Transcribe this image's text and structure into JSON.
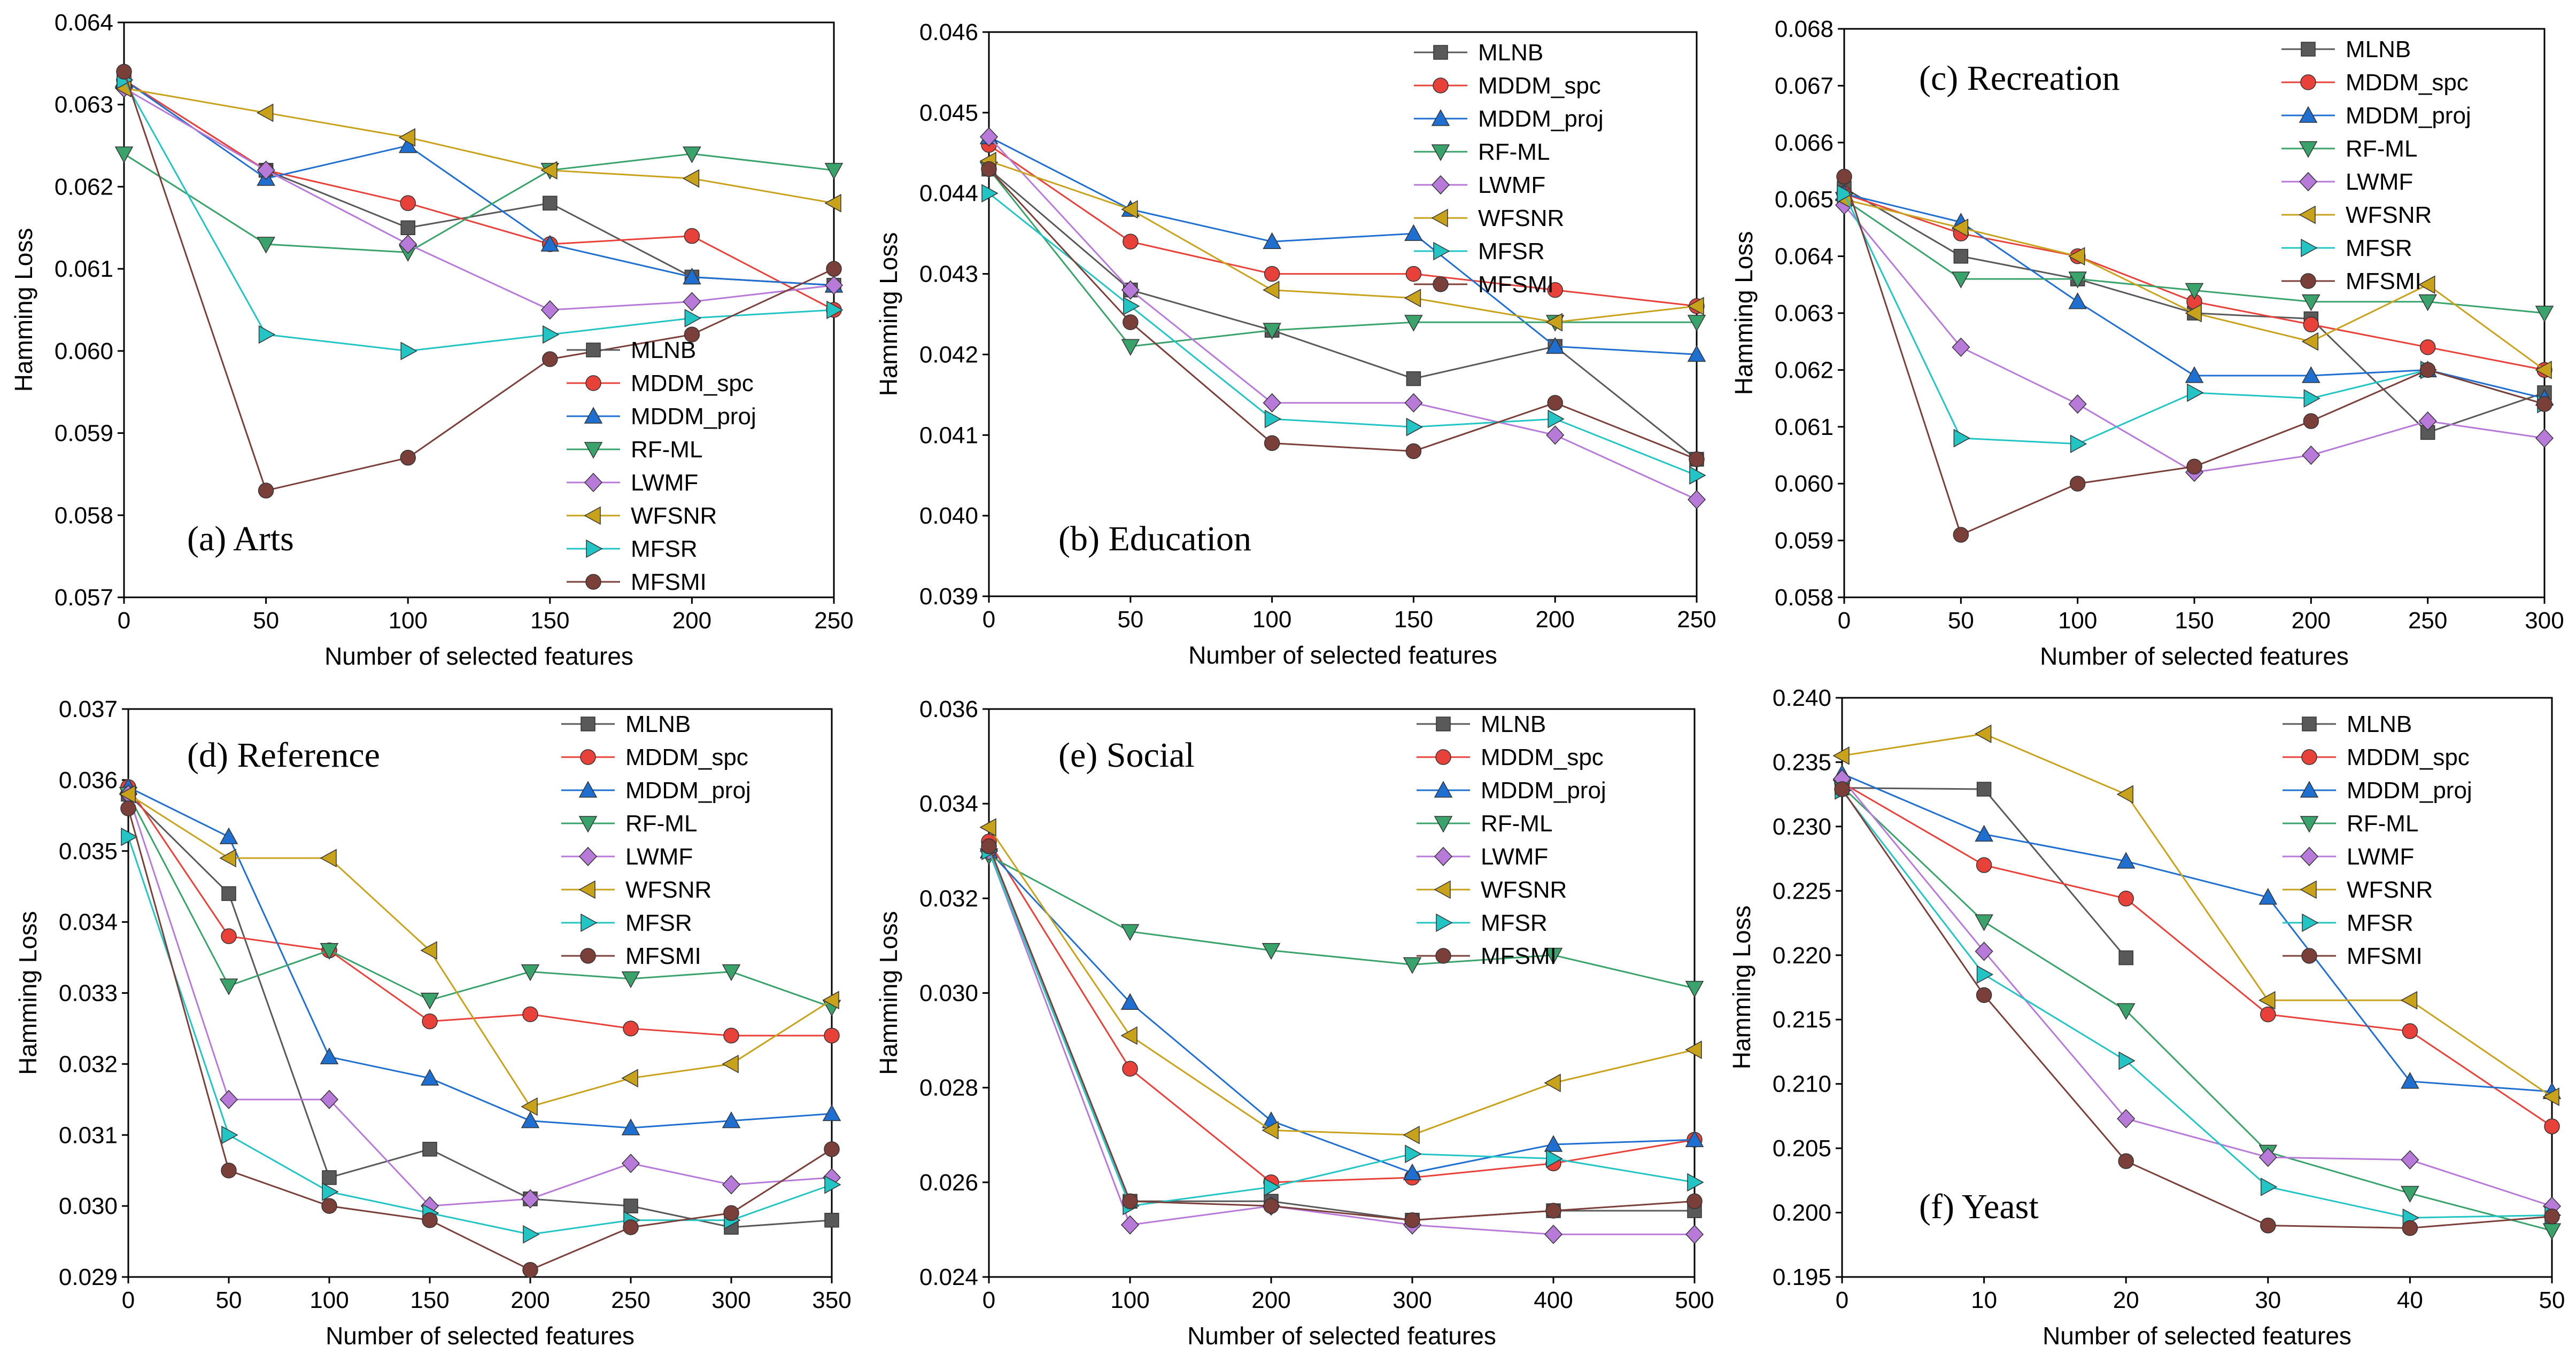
{
  "figure": {
    "series_styles": [
      {
        "name": "MLNB",
        "color": "#595959",
        "marker": "square"
      },
      {
        "name": "MDDM_spc",
        "color": "#e8413a",
        "marker": "circle"
      },
      {
        "name": "MDDM_proj",
        "color": "#1f6fd1",
        "marker": "triangle-up"
      },
      {
        "name": "RF-ML",
        "color": "#3aa36b",
        "marker": "triangle-down"
      },
      {
        "name": "LWMF",
        "color": "#b77ad8",
        "marker": "diamond"
      },
      {
        "name": "WFSNR",
        "color": "#c9a21c",
        "marker": "triangle-left"
      },
      {
        "name": "MFSR",
        "color": "#22c4c4",
        "marker": "triangle-right"
      },
      {
        "name": "MFSMI",
        "color": "#7b3f3a",
        "marker": "circle"
      }
    ]
  },
  "chart_data": [
    {
      "type": "line",
      "title": "(a) Arts",
      "xlabel": "Number of selected features",
      "ylabel": "Hamming Loss",
      "x": [
        0,
        50,
        100,
        150,
        200,
        250
      ],
      "xticks": [
        "0",
        "50",
        "100",
        "150",
        "200",
        "250"
      ],
      "xlim": [
        0,
        250
      ],
      "ylim": [
        0.057,
        0.064
      ],
      "yticks": [
        "0.057",
        "0.058",
        "0.059",
        "0.060",
        "0.061",
        "0.062",
        "0.063",
        "0.064"
      ],
      "series": [
        {
          "name": "MLNB",
          "values": [
            0.0633,
            0.0622,
            0.0615,
            0.0618,
            0.0609,
            0.0608
          ]
        },
        {
          "name": "MDDM_spc",
          "values": [
            0.0633,
            0.0622,
            0.0618,
            0.0613,
            0.0614,
            0.0605
          ]
        },
        {
          "name": "MDDM_proj",
          "values": [
            0.0633,
            0.0621,
            0.0625,
            0.0613,
            0.0609,
            0.0608
          ]
        },
        {
          "name": "RF-ML",
          "values": [
            0.0624,
            0.0613,
            0.0612,
            0.0622,
            0.0624,
            0.0622
          ]
        },
        {
          "name": "LWMF",
          "values": [
            0.0632,
            0.0622,
            0.0613,
            0.0605,
            0.0606,
            0.0608
          ]
        },
        {
          "name": "WFSNR",
          "values": [
            0.0632,
            0.0629,
            0.0626,
            0.0622,
            0.0621,
            0.0618
          ]
        },
        {
          "name": "MFSR",
          "values": [
            0.0633,
            0.0602,
            0.06,
            0.0602,
            0.0604,
            0.0605
          ]
        },
        {
          "name": "MFSMI",
          "values": [
            0.0634,
            0.0583,
            0.0587,
            0.0599,
            0.0602,
            0.061
          ]
        }
      ]
    },
    {
      "type": "line",
      "title": "(b) Education",
      "xlabel": "Number of selected features",
      "ylabel": "Hamming Loss",
      "x": [
        0,
        50,
        100,
        150,
        200,
        250
      ],
      "xticks": [
        "0",
        "50",
        "100",
        "150",
        "200",
        "250"
      ],
      "xlim": [
        0,
        250
      ],
      "ylim": [
        0.039,
        0.046
      ],
      "yticks": [
        "0.039",
        "0.040",
        "0.041",
        "0.042",
        "0.043",
        "0.044",
        "0.045",
        "0.046"
      ],
      "series": [
        {
          "name": "MLNB",
          "values": [
            0.0443,
            0.0428,
            0.0423,
            0.0417,
            0.0421,
            0.0407
          ]
        },
        {
          "name": "MDDM_spc",
          "values": [
            0.0446,
            0.0434,
            0.043,
            0.043,
            0.0428,
            0.0426
          ]
        },
        {
          "name": "MDDM_proj",
          "values": [
            0.0447,
            0.0438,
            0.0434,
            0.0435,
            0.0421,
            0.042
          ]
        },
        {
          "name": "RF-ML",
          "values": [
            0.0443,
            0.0421,
            0.0423,
            0.0424,
            0.0424,
            0.0424
          ]
        },
        {
          "name": "LWMF",
          "values": [
            0.0447,
            0.0428,
            0.0414,
            0.0414,
            0.041,
            0.0402
          ]
        },
        {
          "name": "WFSNR",
          "values": [
            0.0444,
            0.0438,
            0.0428,
            0.0427,
            0.0424,
            0.0426
          ]
        },
        {
          "name": "MFSR",
          "values": [
            0.044,
            0.0426,
            0.0412,
            0.0411,
            0.0412,
            0.0405
          ]
        },
        {
          "name": "MFSMI",
          "values": [
            0.0443,
            0.0424,
            0.0409,
            0.0408,
            0.0414,
            0.0407
          ]
        }
      ]
    },
    {
      "type": "line",
      "title": "(c) Recreation",
      "xlabel": "Number of selected features",
      "ylabel": "Hamming Loss",
      "x": [
        0,
        50,
        100,
        150,
        200,
        250,
        300
      ],
      "xticks": [
        "0",
        "50",
        "100",
        "150",
        "200",
        "250",
        "300"
      ],
      "xlim": [
        0,
        300
      ],
      "ylim": [
        0.058,
        0.068
      ],
      "yticks": [
        "0.058",
        "0.059",
        "0.060",
        "0.061",
        "0.062",
        "0.063",
        "0.064",
        "0.065",
        "0.066",
        "0.067",
        "0.068"
      ],
      "series": [
        {
          "name": "MLNB",
          "values": [
            0.0652,
            0.064,
            0.0636,
            0.063,
            0.0629,
            0.0609,
            0.0616
          ]
        },
        {
          "name": "MDDM_spc",
          "values": [
            0.0651,
            0.0644,
            0.064,
            0.0632,
            0.0628,
            0.0624,
            0.062
          ]
        },
        {
          "name": "MDDM_proj",
          "values": [
            0.0651,
            0.0646,
            0.0632,
            0.0619,
            0.0619,
            0.062,
            0.0615
          ]
        },
        {
          "name": "RF-ML",
          "values": [
            0.065,
            0.0636,
            0.0636,
            0.0634,
            0.0632,
            0.0632,
            0.063
          ]
        },
        {
          "name": "LWMF",
          "values": [
            0.0649,
            0.0624,
            0.0614,
            0.0602,
            0.0605,
            0.0611,
            0.0608
          ]
        },
        {
          "name": "WFSNR",
          "values": [
            0.065,
            0.0645,
            0.064,
            0.063,
            0.0625,
            0.0635,
            0.062
          ]
        },
        {
          "name": "MFSR",
          "values": [
            0.0651,
            0.0608,
            0.0607,
            0.0616,
            0.0615,
            0.062,
            0.0614
          ]
        },
        {
          "name": "MFSMI",
          "values": [
            0.0654,
            0.0591,
            0.06,
            0.0603,
            0.0611,
            0.062,
            0.0614
          ]
        }
      ]
    },
    {
      "type": "line",
      "title": "(d) Reference",
      "xlabel": "Number of selected features",
      "ylabel": "Hamming Loss",
      "x": [
        0,
        50,
        100,
        150,
        200,
        250,
        300,
        350
      ],
      "xticks": [
        "0",
        "50",
        "100",
        "150",
        "200",
        "250",
        "300",
        "350"
      ],
      "xlim": [
        0,
        350
      ],
      "ylim": [
        0.029,
        0.037
      ],
      "yticks": [
        "0.029",
        "0.030",
        "0.031",
        "0.032",
        "0.033",
        "0.034",
        "0.035",
        "0.036",
        "0.037"
      ],
      "series": [
        {
          "name": "MLNB",
          "values": [
            0.0358,
            0.0344,
            0.0304,
            0.0308,
            0.0301,
            0.03,
            0.0297,
            0.0298
          ]
        },
        {
          "name": "MDDM_spc",
          "values": [
            0.0359,
            0.0338,
            0.0336,
            0.0326,
            0.0327,
            0.0325,
            0.0324,
            0.0324
          ]
        },
        {
          "name": "MDDM_proj",
          "values": [
            0.0359,
            0.0352,
            0.0321,
            0.0318,
            0.0312,
            0.0311,
            0.0312,
            0.0313
          ]
        },
        {
          "name": "RF-ML",
          "values": [
            0.0358,
            0.0331,
            0.0336,
            0.0329,
            0.0333,
            0.0332,
            0.0333,
            0.0328
          ]
        },
        {
          "name": "LWMF",
          "values": [
            0.0358,
            0.0315,
            0.0315,
            0.03,
            0.0301,
            0.0306,
            0.0303,
            0.0304
          ]
        },
        {
          "name": "WFSNR",
          "values": [
            0.0358,
            0.0349,
            0.0349,
            0.0336,
            0.0314,
            0.0318,
            0.032,
            0.0329
          ]
        },
        {
          "name": "MFSR",
          "values": [
            0.0352,
            0.031,
            0.0302,
            0.0299,
            0.0296,
            0.0298,
            0.0298,
            0.0303
          ]
        },
        {
          "name": "MFSMI",
          "values": [
            0.0356,
            0.0305,
            0.03,
            0.0298,
            0.0291,
            0.0297,
            0.0299,
            0.0308
          ]
        }
      ]
    },
    {
      "type": "line",
      "title": "(e) Social",
      "xlabel": "Number of selected features",
      "ylabel": "Hamming Loss",
      "x": [
        0,
        100,
        200,
        300,
        400,
        500
      ],
      "xticks": [
        "0",
        "100",
        "200",
        "300",
        "400",
        "500"
      ],
      "xlim": [
        0,
        500
      ],
      "ylim": [
        0.024,
        0.036
      ],
      "yticks": [
        "0.024",
        "0.026",
        "0.028",
        "0.030",
        "0.032",
        "0.034",
        "0.036"
      ],
      "series": [
        {
          "name": "MLNB",
          "values": [
            0.0331,
            0.0256,
            0.0256,
            0.0252,
            0.0254,
            0.0254
          ]
        },
        {
          "name": "MDDM_spc",
          "values": [
            0.0332,
            0.0284,
            0.026,
            0.0261,
            0.0264,
            0.0269
          ]
        },
        {
          "name": "MDDM_proj",
          "values": [
            0.033,
            0.0298,
            0.0273,
            0.0262,
            0.0268,
            0.0269
          ]
        },
        {
          "name": "RF-ML",
          "values": [
            0.0329,
            0.0313,
            0.0309,
            0.0306,
            0.0308,
            0.0301
          ]
        },
        {
          "name": "LWMF",
          "values": [
            0.033,
            0.0251,
            0.0255,
            0.0251,
            0.0249,
            0.0249
          ]
        },
        {
          "name": "WFSNR",
          "values": [
            0.0335,
            0.0291,
            0.0271,
            0.027,
            0.0281,
            0.0288
          ]
        },
        {
          "name": "MFSR",
          "values": [
            0.033,
            0.0255,
            0.0259,
            0.0266,
            0.0265,
            0.026
          ]
        },
        {
          "name": "MFSMI",
          "values": [
            0.0331,
            0.0256,
            0.0255,
            0.0252,
            0.0254,
            0.0256
          ]
        }
      ]
    },
    {
      "type": "line",
      "title": "(f) Yeast",
      "xlabel": "Number of selected features",
      "ylabel": "Hamming Loss",
      "x": [
        0,
        10,
        20,
        30,
        40,
        50
      ],
      "xticks": [
        "0",
        "10",
        "20",
        "30",
        "40",
        "50"
      ],
      "xlim": [
        0,
        50
      ],
      "ylim": [
        0.195,
        0.24
      ],
      "yticks": [
        "0.195",
        "0.200",
        "0.205",
        "0.210",
        "0.215",
        "0.220",
        "0.225",
        "0.230",
        "0.235",
        "0.240"
      ],
      "series": [
        {
          "name": "MLNB",
          "values": [
            0.233,
            0.2329,
            0.2198,
            null,
            null,
            null
          ]
        },
        {
          "name": "MDDM_spc",
          "values": [
            0.2334,
            0.227,
            0.2244,
            0.2154,
            0.2141,
            0.2067
          ]
        },
        {
          "name": "MDDM_proj",
          "values": [
            0.2341,
            0.2294,
            0.2273,
            0.2245,
            0.2102,
            0.2094
          ]
        },
        {
          "name": "RF-ML",
          "values": [
            0.2331,
            0.2226,
            0.2157,
            0.2047,
            0.2015,
            0.1986
          ]
        },
        {
          "name": "LWMF",
          "values": [
            0.2337,
            0.2203,
            0.2073,
            0.2043,
            0.2041,
            0.2005
          ]
        },
        {
          "name": "WFSNR",
          "values": [
            0.2355,
            0.2372,
            0.2325,
            0.2165,
            0.2165,
            0.209
          ]
        },
        {
          "name": "MFSR",
          "values": [
            0.2328,
            0.2185,
            0.2118,
            0.202,
            0.1996,
            0.1998
          ]
        },
        {
          "name": "MFSMI",
          "values": [
            0.2329,
            0.2169,
            0.204,
            0.199,
            0.1988,
            0.1997
          ]
        }
      ]
    }
  ]
}
